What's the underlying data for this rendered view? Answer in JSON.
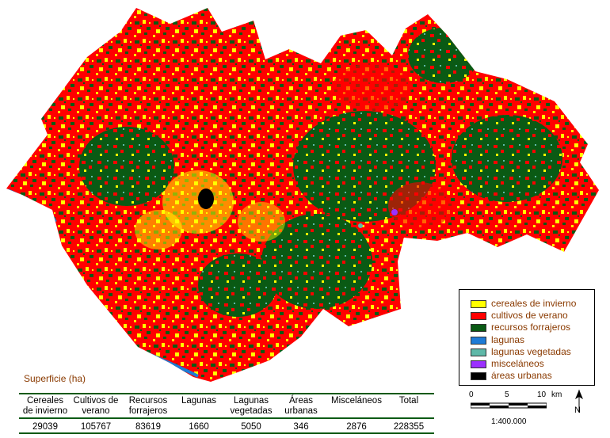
{
  "legend": {
    "items": [
      {
        "label": "cereales de invierno",
        "color": "#ffff00"
      },
      {
        "label": "cultivos de verano",
        "color": "#ff0000"
      },
      {
        "label": "recursos forrajeros",
        "color": "#0a5a14"
      },
      {
        "label": "lagunas",
        "color": "#1e7bd6"
      },
      {
        "label": "lagunas vegetadas",
        "color": "#5fb8a8"
      },
      {
        "label": "misceláneos",
        "color": "#9b30ff"
      },
      {
        "label": "áreas urbanas",
        "color": "#000000"
      }
    ]
  },
  "table": {
    "title": "Superficie (ha)",
    "headers": [
      [
        "Cereales",
        "de invierno"
      ],
      [
        "Cultivos de",
        "verano"
      ],
      [
        "Recursos",
        "forrajeros"
      ],
      [
        "Lagunas",
        ""
      ],
      [
        "Lagunas",
        "vegetadas"
      ],
      [
        "Áreas",
        "urbanas"
      ],
      [
        "Misceláneos",
        ""
      ],
      [
        "Total",
        ""
      ]
    ],
    "values": [
      "29039",
      "105767",
      "83619",
      "1660",
      "5050",
      "346",
      "2876",
      "228355"
    ]
  },
  "scale": {
    "ticks": [
      "0",
      "5",
      "10"
    ],
    "unit": "km",
    "ratio": "1:400.000"
  },
  "north_label": "N"
}
